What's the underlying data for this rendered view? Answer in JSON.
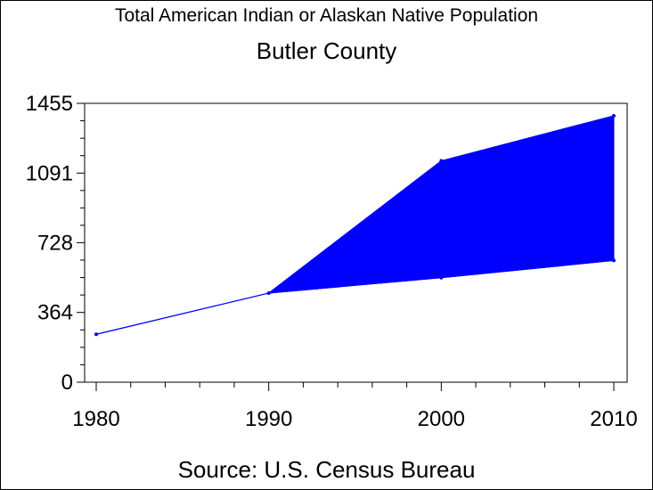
{
  "title": "Total American Indian or Alaskan Native Population",
  "subtitle": "Butler County",
  "source": "Source: U.S. Census Bureau",
  "colors": {
    "fill": "#0000ff",
    "line": "#0000ff",
    "axis": "#000000"
  },
  "chart_data": {
    "type": "area",
    "x": [
      1980,
      1990,
      2000,
      2010
    ],
    "lower": [
      250,
      465,
      545,
      635
    ],
    "upper": [
      250,
      465,
      1155,
      1390
    ],
    "xlim": [
      1980,
      2010
    ],
    "ylim": [
      0,
      1455
    ],
    "yticks": [
      0,
      364,
      728,
      1091,
      1455
    ],
    "xticks": [
      1980,
      1990,
      2000,
      2010
    ],
    "grid": false,
    "legend": "none"
  }
}
